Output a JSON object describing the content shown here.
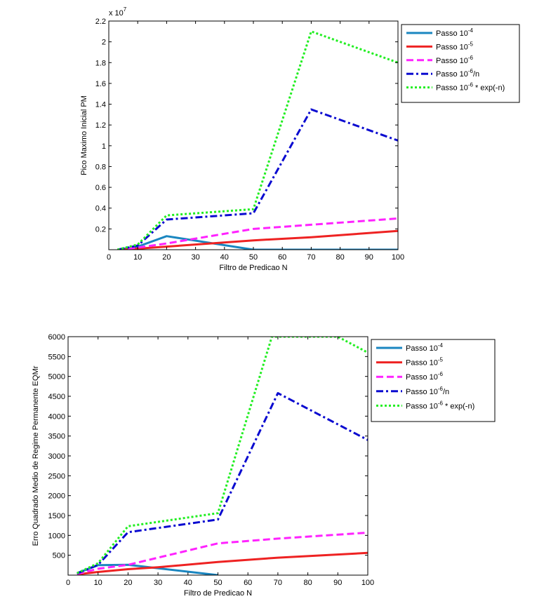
{
  "chart_data": [
    {
      "type": "line",
      "title": "",
      "xlabel": "Filtro de Predicao N",
      "ylabel": "Pico Maximo Inicial PM",
      "exponent_label": {
        "base": "x 10",
        "exp": "7"
      },
      "xlim": [
        0,
        100
      ],
      "ylim": [
        0,
        2.2
      ],
      "x_ticks": [
        0,
        10,
        20,
        30,
        40,
        50,
        60,
        70,
        80,
        90,
        100
      ],
      "y_ticks": [
        0.2,
        0.4,
        0.6,
        0.8,
        1,
        1.2,
        1.4,
        1.6,
        1.8,
        2,
        2.2
      ],
      "grid": false,
      "legend_position": "outside-right",
      "x": [
        3,
        10,
        20,
        50,
        70,
        100
      ],
      "series": [
        {
          "name": "Passo 10^-4",
          "label_base": "Passo 10",
          "label_exp": "-4",
          "label_suffix": "",
          "color": "#1a86c0",
          "style": "solid",
          "values": [
            0.0,
            0.03,
            0.13,
            0.0,
            0.0,
            0.0
          ]
        },
        {
          "name": "Passo 10^-5",
          "label_base": "Passo 10",
          "label_exp": "-5",
          "label_suffix": "",
          "color": "#ee2222",
          "style": "solid",
          "values": [
            0.0,
            0.01,
            0.03,
            0.09,
            0.12,
            0.18
          ]
        },
        {
          "name": "Passo 10^-6",
          "label_base": "Passo 10",
          "label_exp": "-6",
          "label_suffix": "",
          "color": "#ff22ff",
          "style": "dash",
          "values": [
            0.0,
            0.02,
            0.06,
            0.2,
            0.24,
            0.3
          ]
        },
        {
          "name": "Passo 10^-6/n",
          "label_base": "Passo 10",
          "label_exp": "-6",
          "label_suffix": "/n",
          "color": "#0a0ad0",
          "style": "dashdot",
          "values": [
            0.0,
            0.04,
            0.29,
            0.35,
            1.35,
            1.05
          ]
        },
        {
          "name": "Passo 10^-6 * exp(-n)",
          "label_base": "Passo 10",
          "label_exp": "-6",
          "label_suffix": " * exp(-n)",
          "color": "#22ee22",
          "style": "dot",
          "values": [
            0.0,
            0.05,
            0.33,
            0.39,
            2.1,
            1.8
          ]
        }
      ]
    },
    {
      "type": "line",
      "title": "",
      "xlabel": "Filtro de Predicao N",
      "ylabel": "Erro Quadrado Medio de Regime Permanente EQMr",
      "xlim": [
        0,
        100
      ],
      "ylim": [
        0,
        6000
      ],
      "x_ticks": [
        0,
        10,
        20,
        30,
        40,
        50,
        60,
        70,
        80,
        90,
        100
      ],
      "y_ticks": [
        500,
        1000,
        1500,
        2000,
        2500,
        3000,
        3500,
        4000,
        4500,
        5000,
        5500,
        6000
      ],
      "grid": false,
      "legend_position": "outside-right",
      "x": [
        3,
        10,
        20,
        30,
        50,
        70,
        100
      ],
      "series": [
        {
          "name": "Passo 10^-4",
          "label_base": "Passo 10",
          "label_exp": "-4",
          "label_suffix": "",
          "color": "#1a86c0",
          "style": "solid",
          "x": [
            3,
            10,
            20,
            50
          ],
          "values": [
            50,
            250,
            260,
            0
          ]
        },
        {
          "name": "Passo 10^-5",
          "label_base": "Passo 10",
          "label_exp": "-5",
          "label_suffix": "",
          "color": "#ee2222",
          "style": "solid",
          "x": [
            3,
            10,
            20,
            30,
            50,
            70,
            100
          ],
          "values": [
            20,
            80,
            150,
            200,
            330,
            440,
            560
          ]
        },
        {
          "name": "Passo 10^-6",
          "label_base": "Passo 10",
          "label_exp": "-6",
          "label_suffix": "",
          "color": "#ff22ff",
          "style": "dash",
          "x": [
            3,
            10,
            20,
            50,
            70,
            100
          ],
          "values": [
            30,
            160,
            260,
            800,
            920,
            1070
          ]
        },
        {
          "name": "Passo 10^-6/n",
          "label_base": "Passo 10",
          "label_exp": "-6",
          "label_suffix": "/n",
          "color": "#0a0ad0",
          "style": "dashdot",
          "x": [
            3,
            10,
            20,
            50,
            70,
            100
          ],
          "values": [
            40,
            260,
            1080,
            1400,
            4580,
            3400
          ]
        },
        {
          "name": "Passo 10^-6 * exp(-n)",
          "label_base": "Passo 10",
          "label_exp": "-6",
          "label_suffix": " * exp(-n)",
          "color": "#22ee22",
          "style": "dot",
          "x": [
            3,
            10,
            20,
            50,
            68,
            90,
            100
          ],
          "values": [
            50,
            300,
            1230,
            1560,
            6000,
            6000,
            5600
          ]
        }
      ]
    }
  ]
}
